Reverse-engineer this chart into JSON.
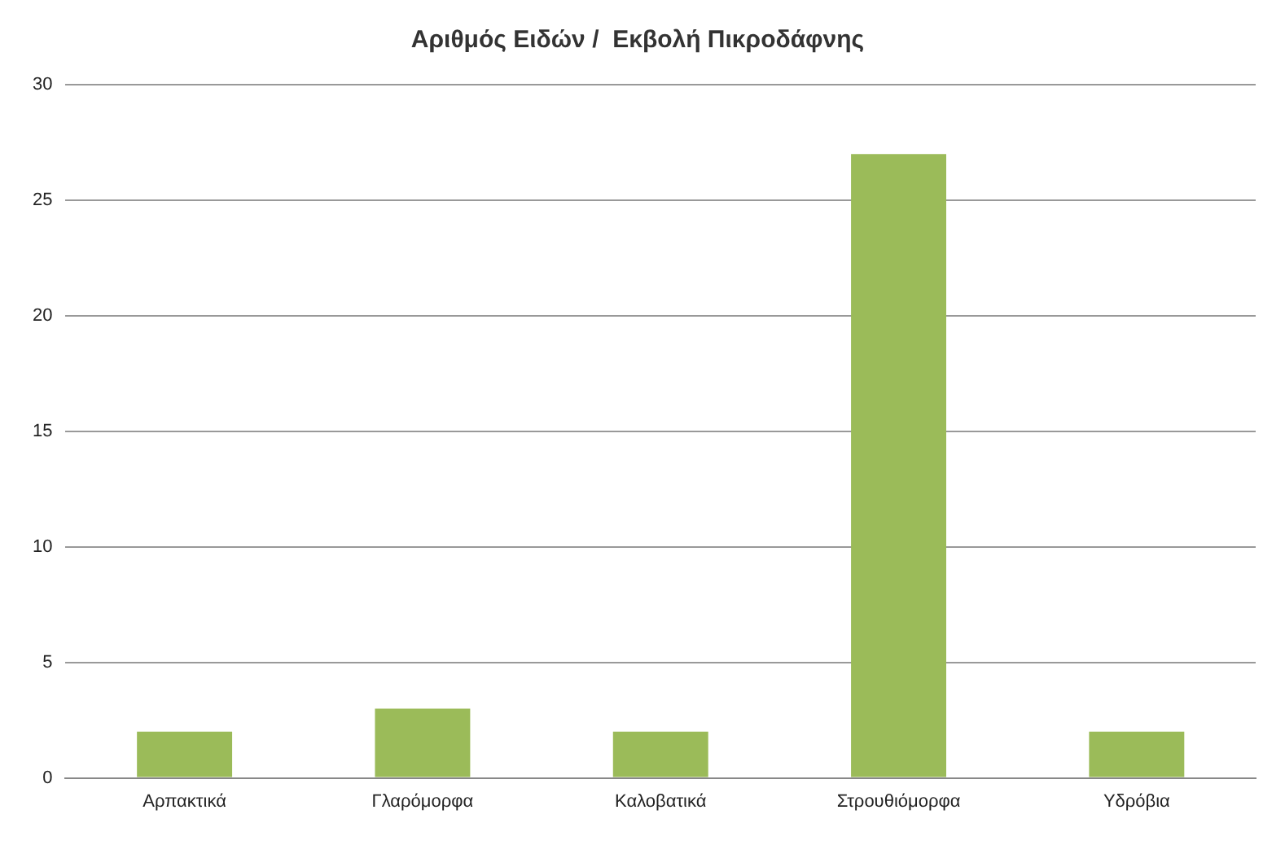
{
  "chart_data": {
    "type": "bar",
    "title": "Αριθμός Ειδών /  Εκβολή Πικροδάφνης",
    "categories": [
      "Αρπακτικά",
      "Γλαρόμορφα",
      "Καλοβατικά",
      "Στρουθιόμορφα",
      "Υδρόβια"
    ],
    "values": [
      2,
      3,
      2,
      27,
      2
    ],
    "color": "#9bbb59",
    "ylim": [
      0,
      30
    ],
    "yticks": [
      0,
      5,
      10,
      15,
      20,
      25,
      30
    ],
    "grid": "y"
  }
}
